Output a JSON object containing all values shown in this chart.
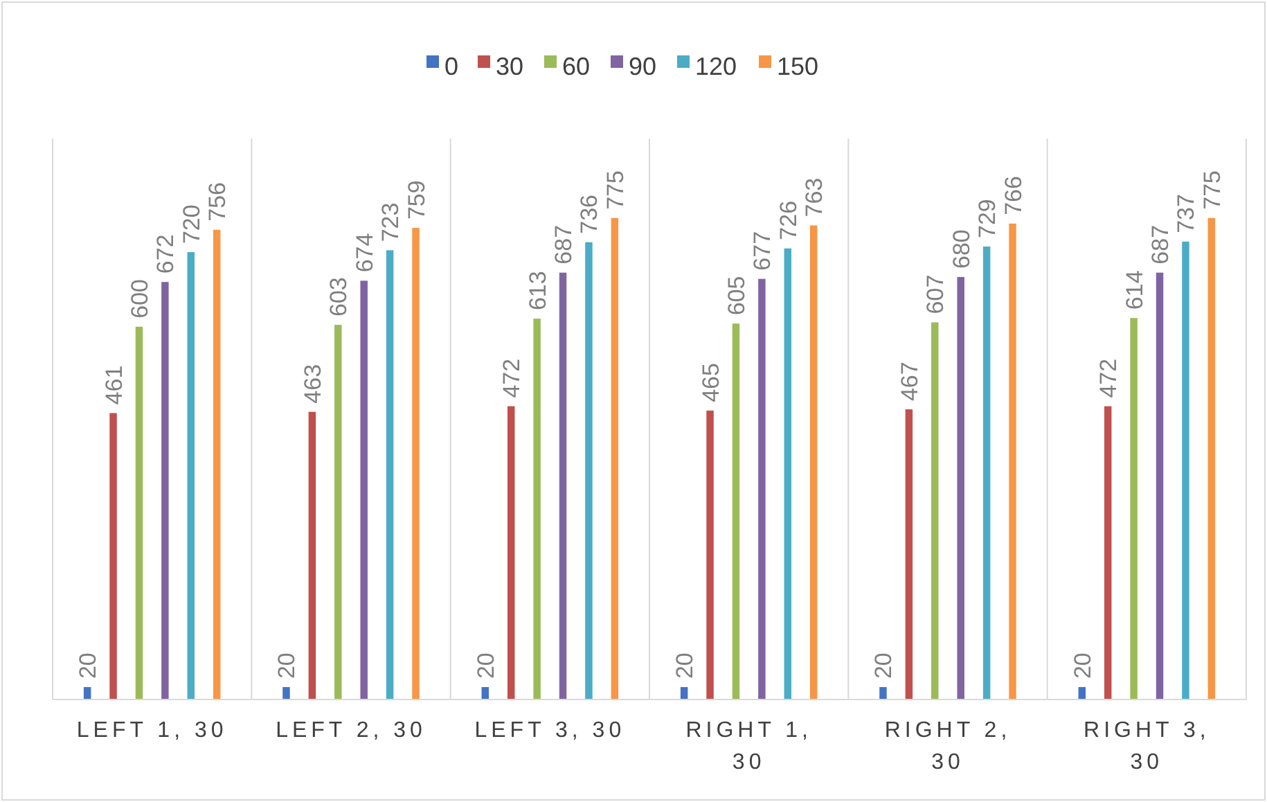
{
  "chart_data": {
    "type": "bar",
    "categories": [
      "LEFT 1, 30",
      "LEFT 2, 30",
      "LEFT 3, 30",
      "RIGHT 1, 30",
      "RIGHT 2, 30",
      "RIGHT 3, 30"
    ],
    "series": [
      {
        "name": "0",
        "color": "#4472c4",
        "values": [
          20,
          20,
          20,
          20,
          20,
          20
        ]
      },
      {
        "name": "30",
        "color": "#c0504d",
        "values": [
          461,
          463,
          472,
          465,
          467,
          472
        ]
      },
      {
        "name": "60",
        "color": "#9bbb59",
        "values": [
          600,
          603,
          613,
          605,
          607,
          614
        ]
      },
      {
        "name": "90",
        "color": "#8064a2",
        "values": [
          672,
          674,
          687,
          677,
          680,
          687
        ]
      },
      {
        "name": "120",
        "color": "#4bacc6",
        "values": [
          720,
          723,
          736,
          726,
          729,
          737
        ]
      },
      {
        "name": "150",
        "color": "#f79646",
        "values": [
          756,
          759,
          775,
          763,
          766,
          775
        ]
      }
    ],
    "data_labels": true,
    "grid": "x",
    "legend": "top",
    "tick_labels": "x"
  }
}
